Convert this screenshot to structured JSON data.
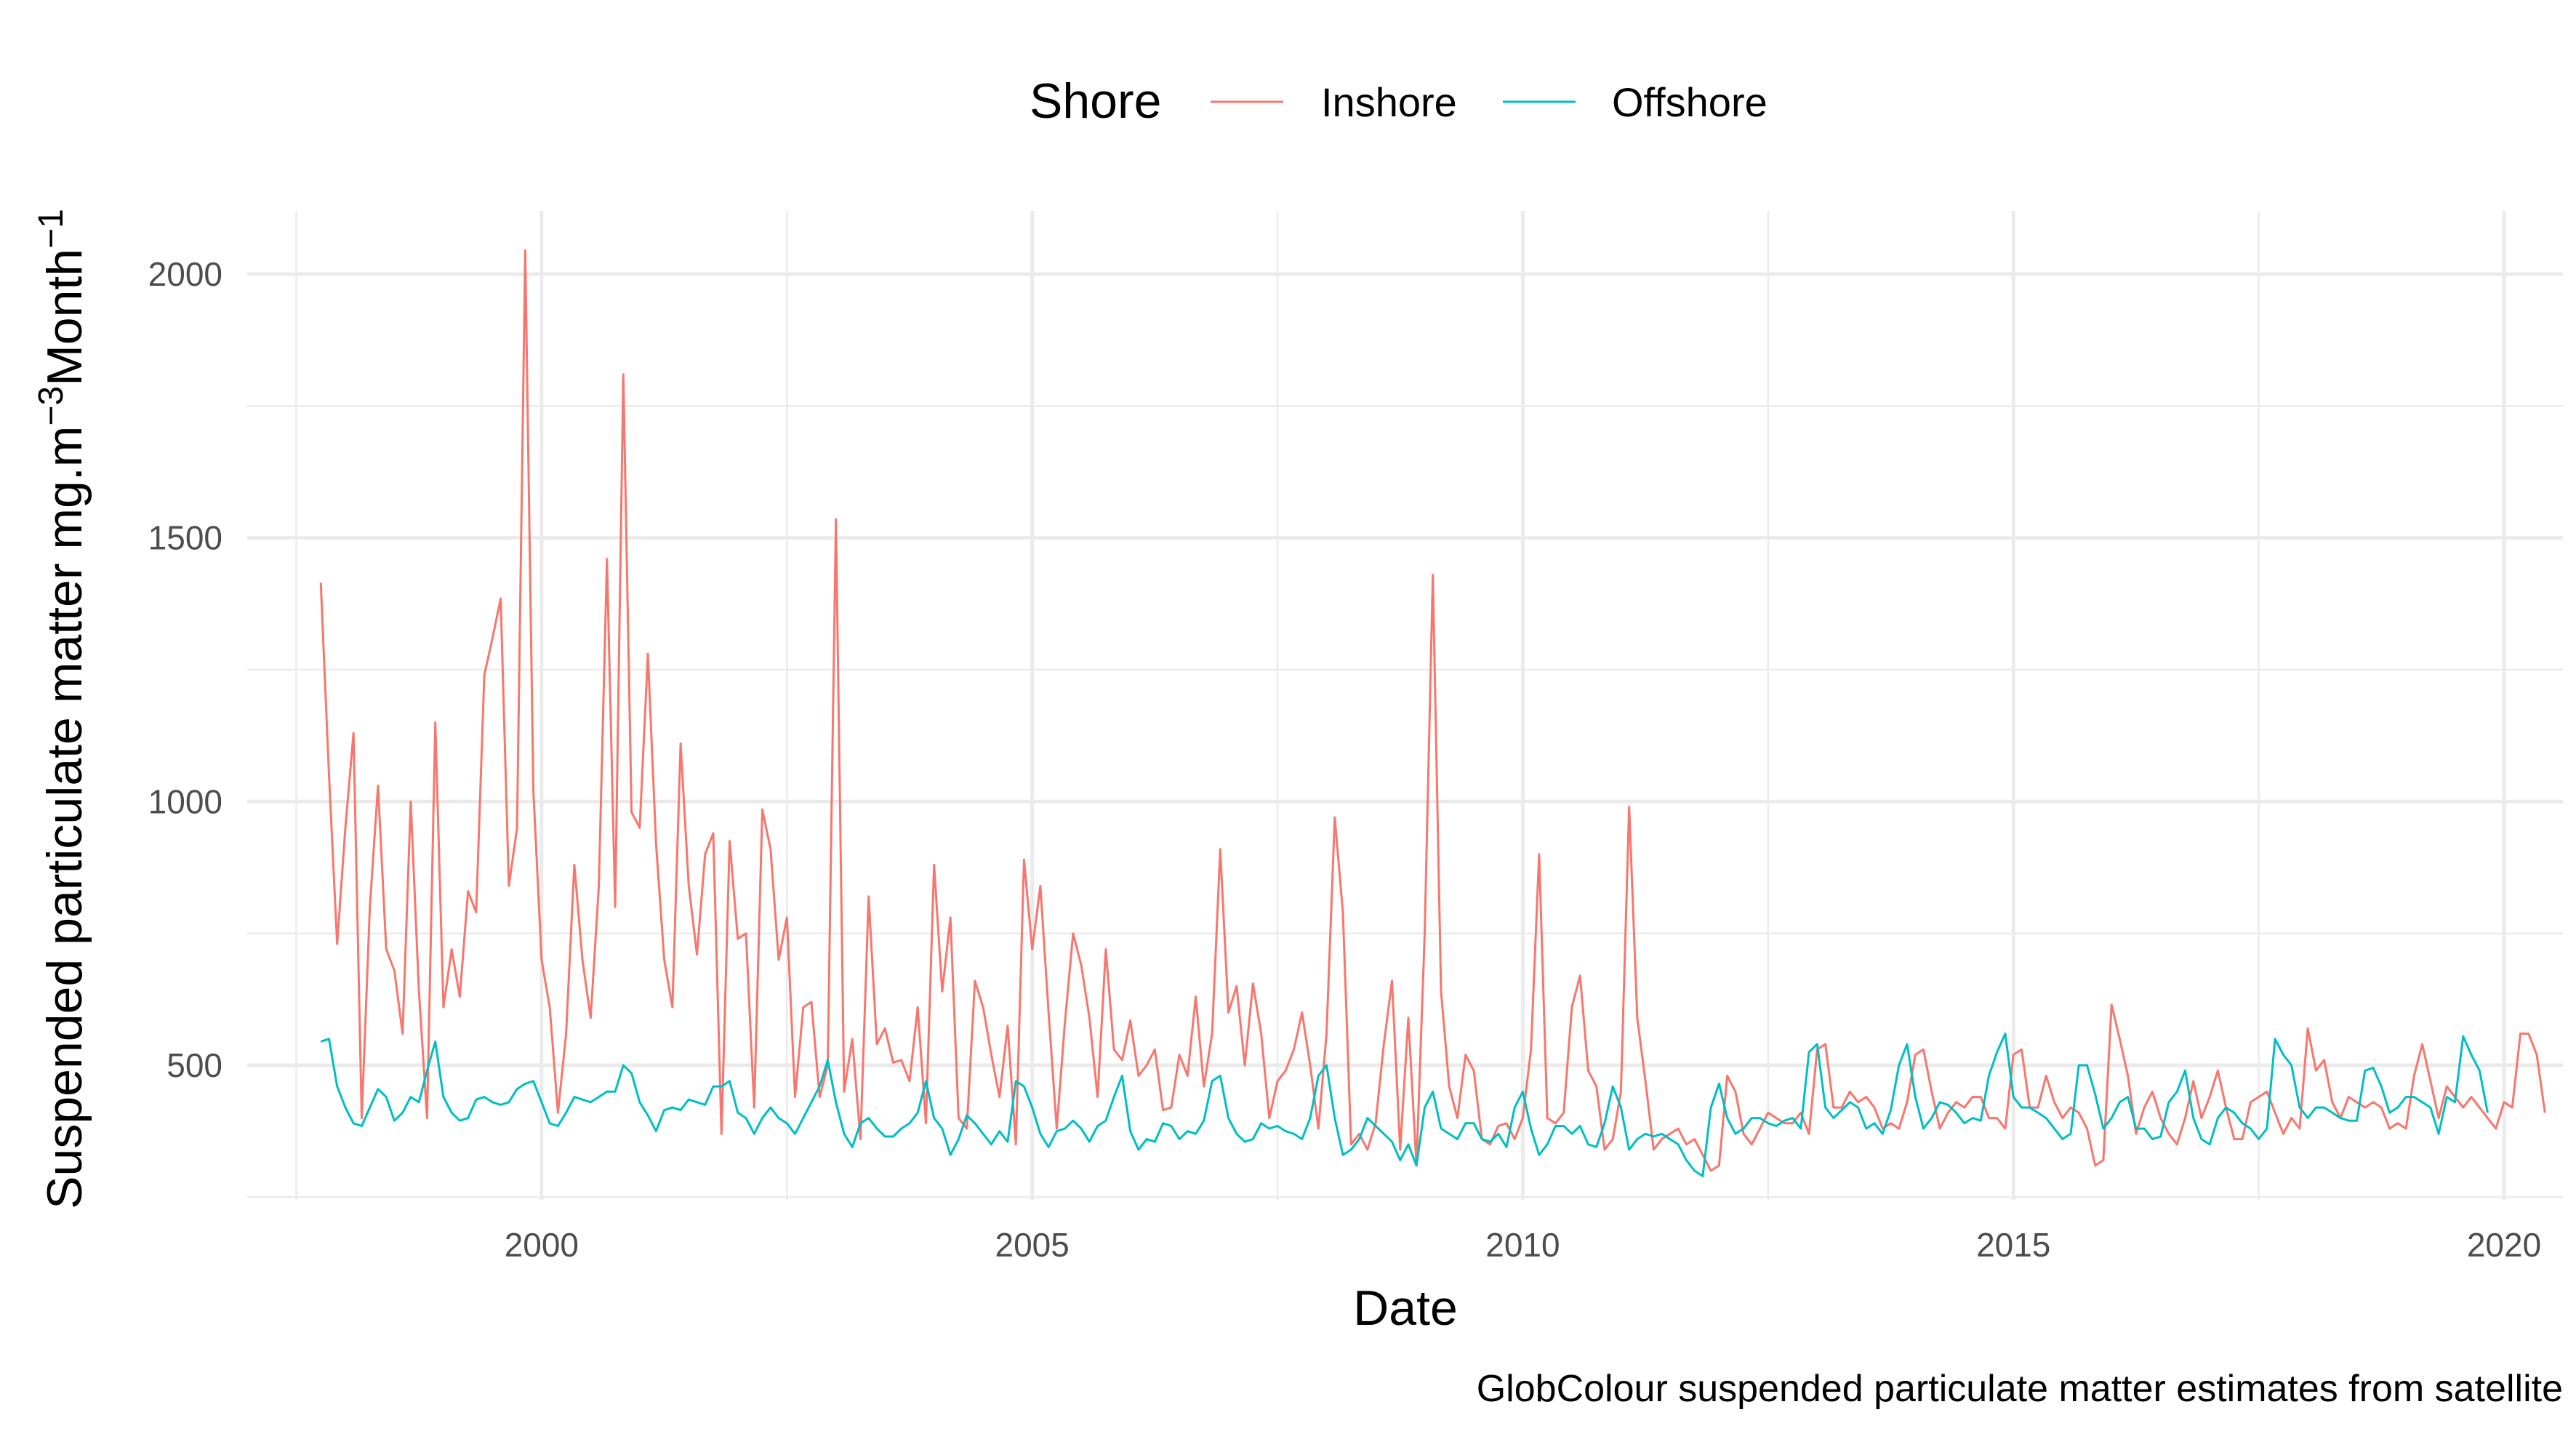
{
  "chart_data": {
    "type": "line",
    "title": "",
    "xlabel": "Date",
    "ylabel": "Suspended particulate matter mg.m",
    "ylabel_sup1": "−3",
    "ylabel_mid": "Month",
    "ylabel_sup2": "−1",
    "caption": "GlobColour suspended particulate matter estimates from satellite",
    "legend": {
      "title": "Shore",
      "position": "top"
    },
    "xlim": [
      1997.0,
      2020.6
    ],
    "ylim": [
      245,
      2120
    ],
    "x_ticks": [
      2000,
      2005,
      2010,
      2015,
      2020
    ],
    "x_tick_labels": [
      "2000",
      "2005",
      "2010",
      "2015",
      "2020"
    ],
    "x_minor_ticks": [
      1997.5,
      2002.5,
      2007.5,
      2012.5,
      2017.5
    ],
    "y_ticks": [
      500,
      1000,
      1500,
      2000
    ],
    "y_tick_labels": [
      "500",
      "1000",
      "1500",
      "2000"
    ],
    "y_minor_ticks": [
      250,
      750,
      1250,
      1750
    ],
    "grid": true,
    "x_start": 1997.75,
    "x_step": 0.0833333,
    "series": [
      {
        "name": "Inshore",
        "color": "#F8766D",
        "values": [
          1415,
          1050,
          730,
          950,
          1130,
          400,
          800,
          1030,
          720,
          680,
          560,
          1000,
          640,
          400,
          1150,
          610,
          720,
          630,
          830,
          790,
          1240,
          1310,
          1385,
          840,
          950,
          2045,
          1020,
          700,
          610,
          410,
          560,
          880,
          700,
          590,
          840,
          1460,
          800,
          1810,
          980,
          950,
          1280,
          920,
          700,
          610,
          1110,
          840,
          710,
          900,
          940,
          370,
          925,
          740,
          750,
          420,
          985,
          910,
          700,
          780,
          440,
          610,
          620,
          440,
          500,
          1535,
          450,
          550,
          360,
          820,
          540,
          570,
          505,
          510,
          470,
          610,
          390,
          880,
          640,
          780,
          400,
          380,
          660,
          610,
          520,
          440,
          575,
          350,
          890,
          720,
          840,
          600,
          380,
          580,
          750,
          690,
          590,
          440,
          720,
          530,
          510,
          585,
          480,
          500,
          530,
          415,
          420,
          520,
          480,
          630,
          460,
          560,
          910,
          600,
          650,
          500,
          655,
          560,
          400,
          470,
          490,
          530,
          600,
          500,
          380,
          560,
          970,
          790,
          350,
          370,
          340,
          390,
          540,
          660,
          340,
          590,
          310,
          750,
          1430,
          640,
          460,
          400,
          520,
          490,
          360,
          350,
          385,
          390,
          360,
          400,
          530,
          900,
          400,
          390,
          410,
          610,
          670,
          490,
          460,
          340,
          360,
          450,
          990,
          590,
          470,
          340,
          360,
          370,
          380,
          350,
          360,
          330,
          300,
          310,
          480,
          450,
          370,
          350,
          380,
          410,
          400,
          390,
          390,
          410,
          370,
          530,
          540,
          420,
          420,
          450,
          430,
          440,
          420,
          380,
          390,
          380,
          430,
          520,
          530,
          450,
          380,
          410,
          430,
          420,
          440,
          440,
          400,
          400,
          380,
          520,
          530,
          420,
          420,
          480,
          430,
          400,
          420,
          410,
          380,
          310,
          320,
          615,
          550,
          480,
          370,
          420,
          450,
          400,
          370,
          350,
          400,
          470,
          400,
          440,
          490,
          420,
          360,
          360,
          430,
          440,
          450,
          410,
          370,
          400,
          380,
          570,
          490,
          510,
          430,
          400,
          440,
          430,
          420,
          430,
          420,
          380,
          390,
          380,
          480,
          540,
          470,
          400,
          460,
          440,
          420,
          440,
          420,
          400,
          380,
          430,
          420,
          560,
          560,
          520,
          410
        ]
      },
      {
        "name": "Offshore",
        "color": "#00BFC4",
        "values": [
          545,
          550,
          460,
          420,
          390,
          385,
          420,
          455,
          440,
          395,
          410,
          440,
          430,
          490,
          545,
          440,
          410,
          395,
          400,
          435,
          440,
          430,
          425,
          430,
          455,
          465,
          470,
          430,
          390,
          385,
          410,
          440,
          435,
          430,
          440,
          450,
          450,
          500,
          485,
          430,
          405,
          375,
          415,
          420,
          415,
          435,
          430,
          425,
          460,
          460,
          470,
          410,
          400,
          370,
          400,
          420,
          400,
          390,
          370,
          400,
          430,
          460,
          510,
          430,
          370,
          345,
          390,
          400,
          380,
          365,
          365,
          380,
          390,
          410,
          470,
          400,
          380,
          330,
          360,
          405,
          390,
          370,
          350,
          375,
          355,
          470,
          460,
          420,
          370,
          345,
          375,
          380,
          395,
          380,
          355,
          385,
          395,
          440,
          480,
          375,
          340,
          360,
          355,
          390,
          385,
          360,
          375,
          370,
          395,
          470,
          480,
          400,
          370,
          355,
          360,
          390,
          380,
          385,
          375,
          370,
          360,
          400,
          480,
          500,
          400,
          330,
          340,
          360,
          400,
          385,
          370,
          355,
          320,
          350,
          310,
          420,
          450,
          380,
          370,
          360,
          390,
          390,
          360,
          355,
          370,
          345,
          420,
          450,
          380,
          330,
          350,
          385,
          385,
          370,
          385,
          350,
          345,
          390,
          460,
          420,
          340,
          360,
          370,
          365,
          370,
          360,
          350,
          320,
          300,
          290,
          420,
          465,
          400,
          370,
          380,
          400,
          400,
          390,
          385,
          395,
          400,
          380,
          525,
          540,
          420,
          400,
          415,
          430,
          420,
          380,
          390,
          370,
          415,
          500,
          540,
          440,
          380,
          400,
          430,
          425,
          410,
          390,
          400,
          395,
          480,
          525,
          560,
          440,
          420,
          420,
          410,
          400,
          380,
          360,
          370,
          500,
          500,
          445,
          380,
          400,
          430,
          440,
          380,
          380,
          360,
          365,
          430,
          450,
          490,
          400,
          360,
          350,
          400,
          420,
          410,
          390,
          380,
          360,
          380,
          550,
          520,
          500,
          420,
          400,
          420,
          420,
          410,
          400,
          395,
          395,
          490,
          495,
          460,
          410,
          420,
          440,
          440,
          430,
          420,
          370,
          440,
          430,
          555,
          520,
          490,
          410
        ]
      }
    ]
  }
}
